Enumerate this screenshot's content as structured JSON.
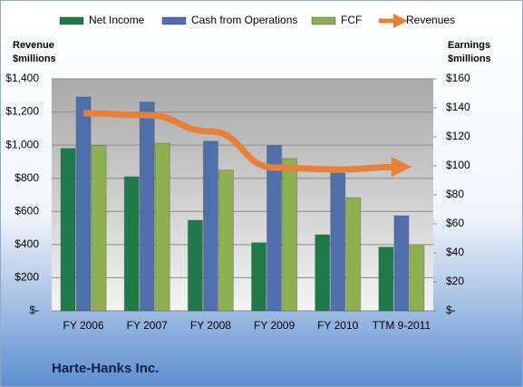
{
  "chart_data": {
    "type": "combo",
    "title": "Harte-Hanks Inc.",
    "ylabel": [
      "Revenue",
      "$millions"
    ],
    "y2label": [
      "Earnings",
      "$millions"
    ],
    "categories": [
      "FY 2006",
      "FY 2007",
      "FY 2008",
      "FY 2009",
      "FY 2010",
      "TTM 9-2011"
    ],
    "ylim": [
      0,
      1400
    ],
    "yticks": [
      {
        "value": 0,
        "label": "$-"
      },
      {
        "value": 200,
        "label": "$200"
      },
      {
        "value": 400,
        "label": "$400"
      },
      {
        "value": 600,
        "label": "$600"
      },
      {
        "value": 800,
        "label": "$800"
      },
      {
        "value": 1000,
        "label": "$1,000"
      },
      {
        "value": 1200,
        "label": "$1,200"
      },
      {
        "value": 1400,
        "label": "$1,400"
      }
    ],
    "y2lim": [
      0,
      160
    ],
    "y2ticks": [
      {
        "value": 0,
        "label": "$-"
      },
      {
        "value": 20,
        "label": "$20"
      },
      {
        "value": 40,
        "label": "$40"
      },
      {
        "value": 60,
        "label": "$60"
      },
      {
        "value": 80,
        "label": "$80"
      },
      {
        "value": 100,
        "label": "$100"
      },
      {
        "value": 120,
        "label": "$120"
      },
      {
        "value": 140,
        "label": "$140"
      },
      {
        "value": 160,
        "label": "$160"
      }
    ],
    "grid": true,
    "series": [
      {
        "name": "Net Income",
        "type": "bar",
        "axis": "y2",
        "color": "#1f7a4a",
        "values": [
          112,
          92.5,
          62.5,
          47,
          52.5,
          44
        ]
      },
      {
        "name": "Cash from Operations",
        "type": "bar",
        "axis": "y2",
        "color": "#4f6fad",
        "values": [
          147.5,
          144,
          117,
          114,
          95,
          65.6
        ]
      },
      {
        "name": "FCF",
        "type": "bar",
        "axis": "y2",
        "color": "#8fb050",
        "values": [
          114,
          115.6,
          97,
          105,
          78,
          45
        ]
      },
      {
        "name": "Revenues",
        "type": "line",
        "axis": "y",
        "color": "#e8803a",
        "values": [
          1192,
          1181,
          1083,
          864,
          853,
          869
        ]
      }
    ]
  }
}
